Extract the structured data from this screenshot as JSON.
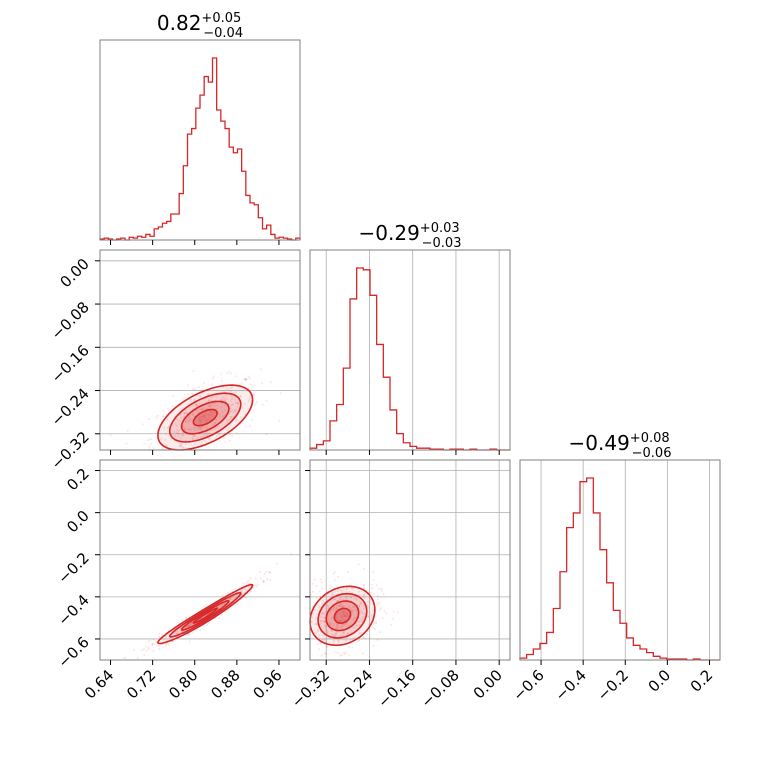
{
  "chart_data": {
    "type": "corner",
    "color": "#d62728",
    "parameters": [
      {
        "median": 0.82,
        "plus": 0.05,
        "minus": 0.04,
        "title_main": "0.82",
        "title_sup": "+0.05",
        "title_sub": "−0.04",
        "range": [
          0.62,
          1.0
        ],
        "ticks": [
          0.64,
          0.72,
          0.8,
          0.88,
          0.96
        ],
        "tick_labels": [
          "0.64",
          "0.72",
          "0.80",
          "0.88",
          "0.96"
        ]
      },
      {
        "median": -0.29,
        "plus": 0.03,
        "minus": 0.03,
        "title_main": "−0.29",
        "title_sup": "+0.03",
        "title_sub": "−0.03",
        "range": [
          -0.35,
          0.02
        ],
        "ticks": [
          -0.32,
          -0.24,
          -0.16,
          -0.08,
          0.0
        ],
        "tick_labels": [
          "−0.32",
          "−0.24",
          "−0.16",
          "−0.08",
          "0.00"
        ]
      },
      {
        "median": -0.49,
        "plus": 0.08,
        "minus": 0.06,
        "title_main": "−0.49",
        "title_sup": "+0.08",
        "title_sub": "−0.06",
        "range": [
          -0.7,
          0.25
        ],
        "ticks": [
          -0.6,
          -0.4,
          -0.2,
          0.0,
          0.2
        ],
        "tick_labels": [
          "−0.6",
          "−0.4",
          "−0.2",
          "0.0",
          "0.2"
        ]
      }
    ],
    "histograms": [
      [
        0.005,
        0.01,
        0.005,
        0.0,
        0.005,
        0.01,
        0.0,
        0.015,
        0.01,
        0.02,
        0.015,
        0.03,
        0.02,
        0.06,
        0.07,
        0.09,
        0.1,
        0.14,
        0.14,
        0.25,
        0.4,
        0.57,
        0.6,
        0.71,
        0.78,
        0.88,
        0.85,
        0.98,
        0.7,
        0.64,
        0.6,
        0.5,
        0.47,
        0.49,
        0.37,
        0.24,
        0.2,
        0.19,
        0.12,
        0.06,
        0.08,
        0.03,
        0.01,
        0.015,
        0.01,
        0.005,
        0.0,
        0.01
      ],
      [
        0.01,
        0.03,
        0.05,
        0.16,
        0.25,
        0.45,
        0.83,
        1.0,
        0.99,
        0.85,
        0.58,
        0.4,
        0.22,
        0.09,
        0.04,
        0.02,
        0.01,
        0.01,
        0.005,
        0.005,
        0.0,
        0.005,
        0.005,
        0.0,
        0.005,
        0.0,
        0.0,
        0.005,
        0.0,
        0.0
      ],
      [
        0.01,
        0.03,
        0.06,
        0.09,
        0.15,
        0.28,
        0.48,
        0.72,
        0.8,
        0.97,
        0.99,
        0.8,
        0.6,
        0.42,
        0.27,
        0.2,
        0.12,
        0.08,
        0.06,
        0.04,
        0.02,
        0.01,
        0.005,
        0.005,
        0.005,
        0.0,
        0.005,
        0.0,
        0.0,
        0.0
      ]
    ]
  }
}
